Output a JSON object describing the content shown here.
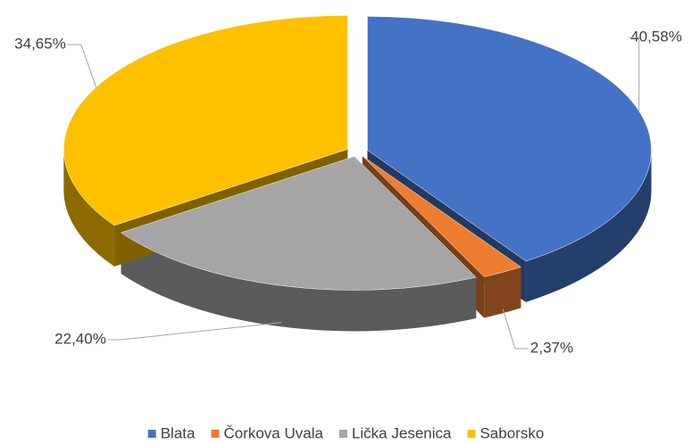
{
  "chart_data": {
    "type": "pie",
    "categories": [
      "Blata",
      "Čorkova Uvala",
      "Lička Jesenica",
      "Saborsko"
    ],
    "values": [
      40.58,
      2.37,
      22.4,
      34.65
    ],
    "value_labels": [
      "40,58%",
      "2,37%",
      "22,40%",
      "34,65%"
    ],
    "colors": [
      "#4472c4",
      "#ed7d31",
      "#a5a5a5",
      "#ffc000"
    ],
    "legend": "bottom"
  }
}
